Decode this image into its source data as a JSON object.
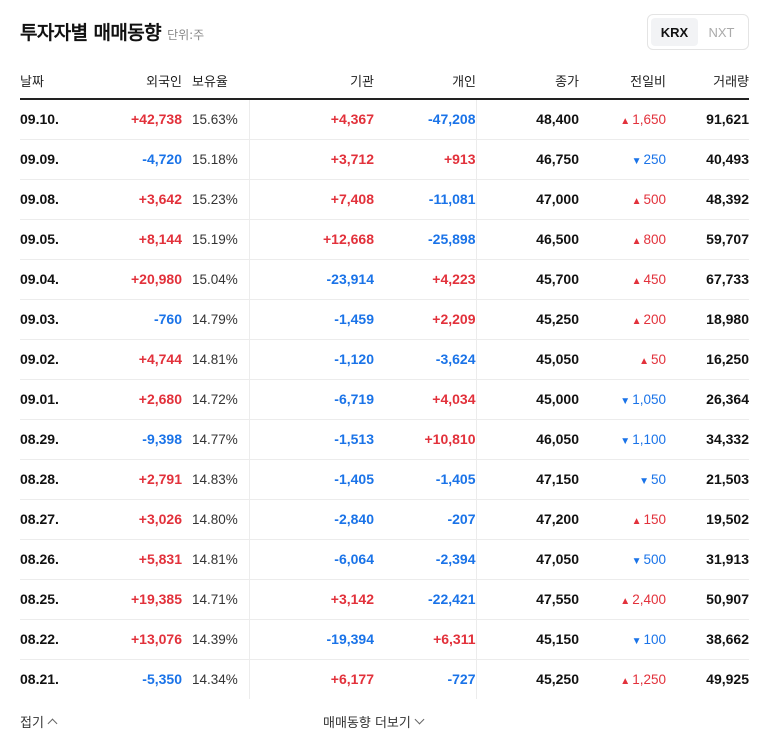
{
  "header": {
    "title": "투자자별 매매동향",
    "unit": "단위:주"
  },
  "market_toggle": {
    "options": [
      "KRX",
      "NXT"
    ],
    "selected": "KRX"
  },
  "columns": [
    "날짜",
    "외국인",
    "보유율",
    "기관",
    "개인",
    "종가",
    "전일비",
    "거래량"
  ],
  "colors": {
    "up": "#e2313b",
    "down": "#1a73e8"
  },
  "rows": [
    {
      "date": "09.10.",
      "foreign": "+42,738",
      "hold": "15.63%",
      "inst": "+4,367",
      "indiv": "-47,208",
      "close": "48,400",
      "chg_dir": "up",
      "chg": "1,650",
      "vol": "91,621"
    },
    {
      "date": "09.09.",
      "foreign": "-4,720",
      "hold": "15.18%",
      "inst": "+3,712",
      "indiv": "+913",
      "close": "46,750",
      "chg_dir": "down",
      "chg": "250",
      "vol": "40,493"
    },
    {
      "date": "09.08.",
      "foreign": "+3,642",
      "hold": "15.23%",
      "inst": "+7,408",
      "indiv": "-11,081",
      "close": "47,000",
      "chg_dir": "up",
      "chg": "500",
      "vol": "48,392"
    },
    {
      "date": "09.05.",
      "foreign": "+8,144",
      "hold": "15.19%",
      "inst": "+12,668",
      "indiv": "-25,898",
      "close": "46,500",
      "chg_dir": "up",
      "chg": "800",
      "vol": "59,707"
    },
    {
      "date": "09.04.",
      "foreign": "+20,980",
      "hold": "15.04%",
      "inst": "-23,914",
      "indiv": "+4,223",
      "close": "45,700",
      "chg_dir": "up",
      "chg": "450",
      "vol": "67,733"
    },
    {
      "date": "09.03.",
      "foreign": "-760",
      "hold": "14.79%",
      "inst": "-1,459",
      "indiv": "+2,209",
      "close": "45,250",
      "chg_dir": "up",
      "chg": "200",
      "vol": "18,980"
    },
    {
      "date": "09.02.",
      "foreign": "+4,744",
      "hold": "14.81%",
      "inst": "-1,120",
      "indiv": "-3,624",
      "close": "45,050",
      "chg_dir": "up",
      "chg": "50",
      "vol": "16,250"
    },
    {
      "date": "09.01.",
      "foreign": "+2,680",
      "hold": "14.72%",
      "inst": "-6,719",
      "indiv": "+4,034",
      "close": "45,000",
      "chg_dir": "down",
      "chg": "1,050",
      "vol": "26,364"
    },
    {
      "date": "08.29.",
      "foreign": "-9,398",
      "hold": "14.77%",
      "inst": "-1,513",
      "indiv": "+10,810",
      "close": "46,050",
      "chg_dir": "down",
      "chg": "1,100",
      "vol": "34,332"
    },
    {
      "date": "08.28.",
      "foreign": "+2,791",
      "hold": "14.83%",
      "inst": "-1,405",
      "indiv": "-1,405",
      "close": "47,150",
      "chg_dir": "down",
      "chg": "50",
      "vol": "21,503"
    },
    {
      "date": "08.27.",
      "foreign": "+3,026",
      "hold": "14.80%",
      "inst": "-2,840",
      "indiv": "-207",
      "close": "47,200",
      "chg_dir": "up",
      "chg": "150",
      "vol": "19,502"
    },
    {
      "date": "08.26.",
      "foreign": "+5,831",
      "hold": "14.81%",
      "inst": "-6,064",
      "indiv": "-2,394",
      "close": "47,050",
      "chg_dir": "down",
      "chg": "500",
      "vol": "31,913"
    },
    {
      "date": "08.25.",
      "foreign": "+19,385",
      "hold": "14.71%",
      "inst": "+3,142",
      "indiv": "-22,421",
      "close": "47,550",
      "chg_dir": "up",
      "chg": "2,400",
      "vol": "50,907"
    },
    {
      "date": "08.22.",
      "foreign": "+13,076",
      "hold": "14.39%",
      "inst": "-19,394",
      "indiv": "+6,311",
      "close": "45,150",
      "chg_dir": "down",
      "chg": "100",
      "vol": "38,662"
    },
    {
      "date": "08.21.",
      "foreign": "-5,350",
      "hold": "14.34%",
      "inst": "+6,177",
      "indiv": "-727",
      "close": "45,250",
      "chg_dir": "up",
      "chg": "1,250",
      "vol": "49,925"
    }
  ],
  "footer": {
    "collapse_label": "접기",
    "more_label": "매매동향 더보기"
  }
}
